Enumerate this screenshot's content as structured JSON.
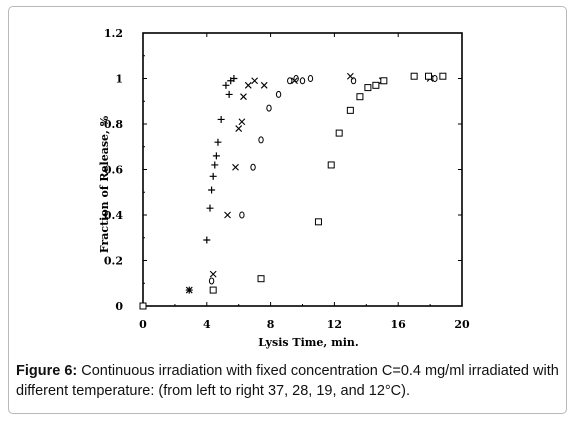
{
  "chart_data": {
    "type": "scatter",
    "xlabel": "Lysis Time, min.",
    "ylabel": "Fraction of Release, %",
    "xlim": [
      0,
      20
    ],
    "ylim": [
      0,
      1.2
    ],
    "xticks": [
      0,
      4,
      8,
      12,
      16,
      20
    ],
    "xtick_labels": [
      "0",
      "4",
      "8",
      "12",
      "16",
      "20"
    ],
    "yticks": [
      0,
      0.2,
      0.4,
      0.6,
      0.8,
      1,
      1.2
    ],
    "ytick_labels": [
      "0",
      "0.2",
      "0.4",
      "0.6",
      "0.8",
      "1",
      "1.2"
    ],
    "series": [
      {
        "marker": "+",
        "points": [
          [
            0,
            0
          ],
          [
            2.9,
            0.07
          ],
          [
            4.0,
            0.29
          ],
          [
            4.2,
            0.43
          ],
          [
            4.3,
            0.51
          ],
          [
            4.4,
            0.57
          ],
          [
            4.5,
            0.62
          ],
          [
            4.6,
            0.66
          ],
          [
            4.7,
            0.72
          ],
          [
            4.9,
            0.82
          ],
          [
            5.2,
            0.97
          ],
          [
            5.4,
            0.93
          ],
          [
            5.5,
            0.99
          ],
          [
            5.7,
            1.0
          ]
        ]
      },
      {
        "marker": "x",
        "points": [
          [
            0,
            0
          ],
          [
            2.9,
            0.07
          ],
          [
            4.4,
            0.14
          ],
          [
            5.3,
            0.4
          ],
          [
            5.8,
            0.61
          ],
          [
            6.0,
            0.78
          ],
          [
            6.2,
            0.81
          ],
          [
            6.3,
            0.92
          ],
          [
            6.6,
            0.97
          ],
          [
            7.0,
            0.99
          ],
          [
            7.6,
            0.97
          ],
          [
            9.5,
            0.99
          ],
          [
            13.0,
            1.01
          ],
          [
            15.0,
            0.99
          ],
          [
            18.0,
            1.0
          ]
        ]
      },
      {
        "marker": "o",
        "points": [
          [
            4.3,
            0.11
          ],
          [
            6.2,
            0.4
          ],
          [
            6.9,
            0.61
          ],
          [
            7.4,
            0.73
          ],
          [
            7.9,
            0.87
          ],
          [
            8.5,
            0.93
          ],
          [
            9.2,
            0.99
          ],
          [
            9.6,
            1.0
          ],
          [
            10.0,
            0.99
          ],
          [
            10.5,
            1.0
          ],
          [
            13.2,
            0.99
          ],
          [
            18.3,
            1.0
          ]
        ]
      },
      {
        "marker": "square",
        "points": [
          [
            0,
            0
          ],
          [
            4.4,
            0.07
          ],
          [
            7.4,
            0.12
          ],
          [
            11.0,
            0.37
          ],
          [
            11.8,
            0.62
          ],
          [
            12.3,
            0.76
          ],
          [
            13.0,
            0.86
          ],
          [
            13.6,
            0.92
          ],
          [
            14.1,
            0.96
          ],
          [
            14.6,
            0.97
          ],
          [
            15.1,
            0.99
          ],
          [
            17.0,
            1.01
          ],
          [
            17.9,
            1.01
          ],
          [
            18.8,
            1.01
          ]
        ]
      }
    ]
  },
  "caption": {
    "label": "Figure 6:",
    "text": " Continuous irradiation with fixed concentration C=0.4 mg/ml irradiated with different temperature: (from left to right 37, 28, 19, and 12°C)."
  }
}
